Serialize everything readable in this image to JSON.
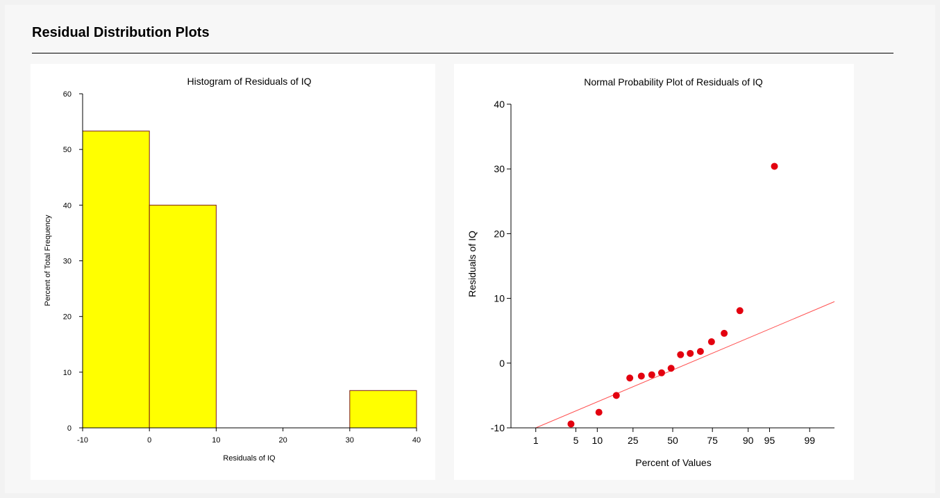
{
  "page": {
    "section_title": "Residual Distribution Plots"
  },
  "chart_data": [
    {
      "type": "bar",
      "title": "Histogram of Residuals of IQ",
      "xlabel": "Residuals of IQ",
      "ylabel": "Percent of Total Frequency",
      "bins": [
        {
          "from": -10,
          "to": 0,
          "value": 53.3
        },
        {
          "from": 0,
          "to": 10,
          "value": 40.0
        },
        {
          "from": 10,
          "to": 20,
          "value": 0
        },
        {
          "from": 20,
          "to": 30,
          "value": 0
        },
        {
          "from": 30,
          "to": 40,
          "value": 6.7
        }
      ],
      "xlim": [
        -10,
        40
      ],
      "ylim": [
        0,
        60
      ],
      "x_ticks": [
        "-10",
        "0",
        "10",
        "20",
        "30",
        "40"
      ],
      "y_ticks": [
        "0",
        "10",
        "20",
        "30",
        "40",
        "50",
        "60"
      ],
      "bar_color": "#ffff00",
      "bar_edge_color": "#7a1a1a",
      "grid": false
    },
    {
      "type": "scatter",
      "title": "Normal Probability Plot of Residuals of IQ",
      "xlabel": "Percent of Values",
      "ylabel": "Residuals of IQ",
      "xscale": "normal-probability",
      "xlim": [
        0.3,
        99.7
      ],
      "ylim": [
        -10,
        40
      ],
      "x_ticks": [
        "1",
        "5",
        "10",
        "25",
        "50",
        "75",
        "90",
        "95",
        "99"
      ],
      "y_ticks": [
        "-10",
        "0",
        "10",
        "20",
        "30",
        "40"
      ],
      "points": [
        {
          "x": 4.2,
          "y": -9.4
        },
        {
          "x": 10.5,
          "y": -7.6
        },
        {
          "x": 16.9,
          "y": -5.0
        },
        {
          "x": 23.3,
          "y": -2.3
        },
        {
          "x": 29.7,
          "y": -2.0
        },
        {
          "x": 36.1,
          "y": -1.8
        },
        {
          "x": 42.5,
          "y": -1.5
        },
        {
          "x": 48.9,
          "y": -0.8
        },
        {
          "x": 55.3,
          "y": 1.3
        },
        {
          "x": 61.7,
          "y": 1.5
        },
        {
          "x": 68.1,
          "y": 1.8
        },
        {
          "x": 74.5,
          "y": 3.3
        },
        {
          "x": 80.9,
          "y": 4.6
        },
        {
          "x": 87.3,
          "y": 8.1
        },
        {
          "x": 95.8,
          "y": 30.4
        }
      ],
      "reference_line": [
        {
          "x": 1,
          "y": -10
        },
        {
          "x": 99.7,
          "y": 9.5
        }
      ],
      "point_color": "#e3000f",
      "line_color": "#ff5050",
      "grid": false
    }
  ]
}
